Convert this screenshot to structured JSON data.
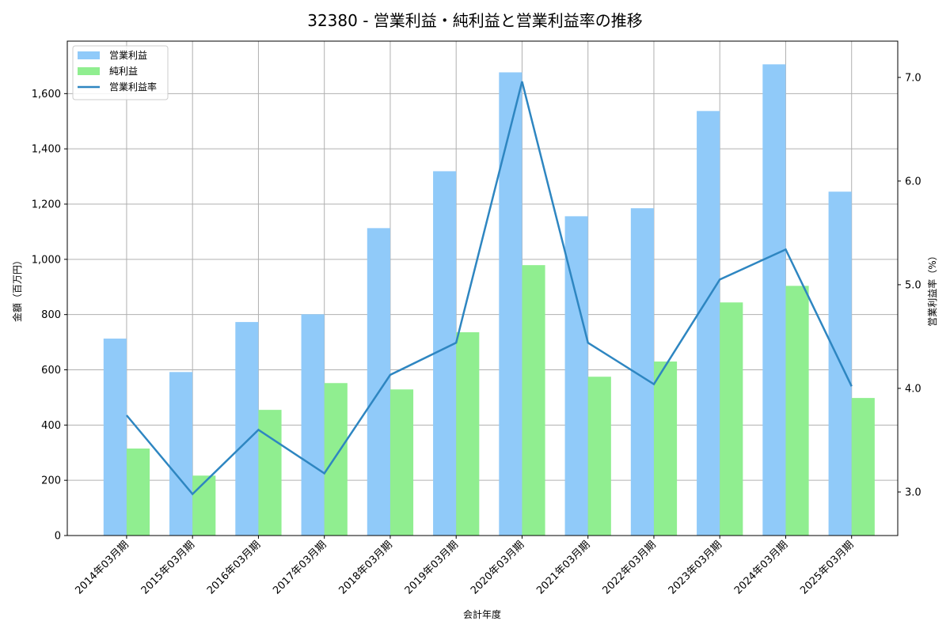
{
  "chart_data": {
    "type": "bar",
    "title": "32380 - 営業利益・純利益と営業利益率の推移",
    "xlabel": "会計年度",
    "ylabel": "金額（百万円）",
    "y2label": "営業利益率（%）",
    "categories": [
      "2014年03月期",
      "2015年03月期",
      "2016年03月期",
      "2017年03月期",
      "2018年03月期",
      "2019年03月期",
      "2020年03月期",
      "2021年03月期",
      "2022年03月期",
      "2023年03月期",
      "2024年03月期",
      "2025年03月期"
    ],
    "series": [
      {
        "name": "営業利益",
        "type": "bar",
        "axis": "left",
        "color": "#90CAF9",
        "values": [
          713,
          592,
          773,
          801,
          1113,
          1319,
          1677,
          1156,
          1185,
          1537,
          1706,
          1245
        ]
      },
      {
        "name": "純利益",
        "type": "bar",
        "axis": "left",
        "color": "#90EE90",
        "values": [
          315,
          217,
          455,
          552,
          529,
          736,
          979,
          575,
          630,
          844,
          904,
          498
        ]
      },
      {
        "name": "営業利益率",
        "type": "line",
        "axis": "right",
        "color": "#2E86C1",
        "values": [
          3.74,
          2.98,
          3.6,
          3.18,
          4.13,
          4.44,
          6.96,
          4.44,
          4.04,
          5.05,
          5.34,
          4.02
        ]
      }
    ],
    "ylim": [
      0,
      1790
    ],
    "y2lim": [
      2.58,
      7.35
    ],
    "yticks": [
      0,
      200,
      400,
      600,
      800,
      1000,
      1200,
      1400,
      1600
    ],
    "ytick_labels": [
      "0",
      "200",
      "400",
      "600",
      "800",
      "1,000",
      "1,200",
      "1,400",
      "1,600"
    ],
    "y2ticks": [
      3.0,
      4.0,
      5.0,
      6.0,
      7.0
    ],
    "y2tick_labels": [
      "3.0",
      "4.0",
      "5.0",
      "6.0",
      "7.0"
    ],
    "grid": true,
    "legend_position": "upper left"
  }
}
